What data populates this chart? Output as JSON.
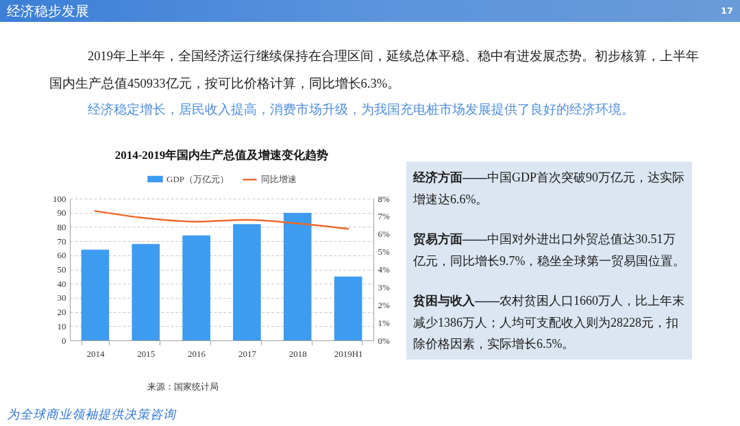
{
  "chart_data": [
    {
      "type": "bar",
      "title": "2014-2019年国内生产总值及增速变化趋势",
      "categories": [
        "2014",
        "2015",
        "2016",
        "2017",
        "2018",
        "2019H1"
      ],
      "series": [
        {
          "name": "GDP（万亿元）",
          "color": "#3d9bf0",
          "values": [
            64,
            68,
            74,
            82,
            90,
            45
          ]
        },
        {
          "name": "同比增速",
          "type": "line",
          "axis": "y2",
          "color": "#ee6a2c",
          "values": [
            7.3,
            6.9,
            6.7,
            6.8,
            6.6,
            6.3
          ]
        }
      ],
      "ylim": [
        0,
        100
      ],
      "yticks": [
        0,
        10,
        20,
        30,
        40,
        50,
        60,
        70,
        80,
        90,
        100
      ],
      "y2lim": [
        0,
        8
      ],
      "y2ticks": [
        {
          "value": 0,
          "label": "0%"
        },
        {
          "value": 1,
          "label": "1%"
        },
        {
          "value": 2,
          "label": "2%"
        },
        {
          "value": 3,
          "label": "3%"
        },
        {
          "value": 4,
          "label": "4%"
        },
        {
          "value": 5,
          "label": "5%"
        },
        {
          "value": 6,
          "label": "6%"
        },
        {
          "value": 7,
          "label": "7%"
        },
        {
          "value": 8,
          "label": "8%"
        }
      ],
      "grid": "y",
      "legend": "top",
      "annotations": [
        "经济稳步发展",
        "17",
        "2019年上半年，全国经济运行继续保持在合理区间，延续总体平稳、稳中有进发展态势。初步核算，上半年国内生产总值450933亿元，按可比价格计算，同比增长6.3%。",
        "经济稳定增长，居民收入提高，消费市场升级，为我国充电桩市场发展提供了良好的经济环境。",
        "来源：国家统计局",
        "为全球商业领袖提供决策咨询"
      ]
    },
    {
      "type": "other",
      "annotations": [
        "经济方面——中国GDP首次突破90万亿元，达实际增速达6.6%。",
        "贸易方面——中国对外进出口外贸总值达30.51万亿元，同比增长9.7%，稳坐全球第一贸易国位置。",
        "贫困与收入——农村贫困人口1660万人，比上年末减少1386万人；人均可支配收入则为28228元，扣除价格因素，实际增长6.5%。"
      ]
    }
  ]
}
